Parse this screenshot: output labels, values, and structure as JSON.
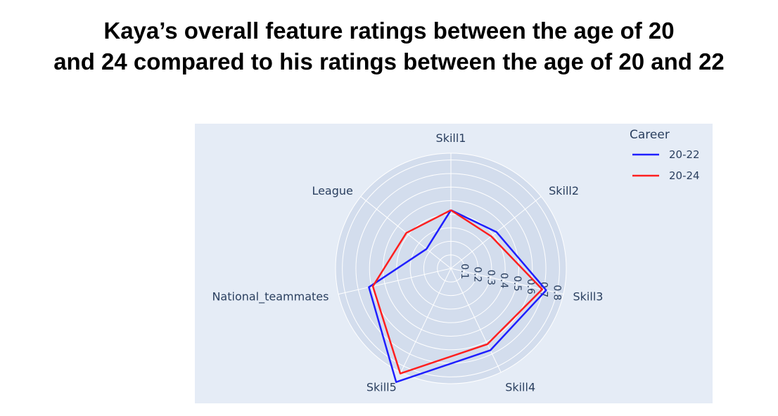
{
  "title": {
    "line1": "Kaya’s overall feature ratings between the age of 20",
    "line2": "and 24 compared to his ratings between the age of 20 and 22"
  },
  "chart_data": {
    "type": "radar",
    "categories": [
      "Skill1",
      "Skill2",
      "Skill3",
      "Skill4",
      "Skill5",
      "National_teammates",
      "League"
    ],
    "radial_ticks": [
      "0.1",
      "0.2",
      "0.3",
      "0.4",
      "0.5",
      "0.6",
      "0.7",
      "0.8"
    ],
    "rlim": [
      0,
      0.85
    ],
    "grid": true,
    "legend": {
      "title": "Career",
      "placement": "top-right"
    },
    "series": [
      {
        "name": "20-22",
        "color": "#1f1fff",
        "values": [
          0.43,
          0.43,
          0.72,
          0.67,
          0.93,
          0.62,
          0.23
        ]
      },
      {
        "name": "20-24",
        "color": "#ff1f1f",
        "values": [
          0.43,
          0.38,
          0.69,
          0.62,
          0.86,
          0.59,
          0.42
        ]
      }
    ]
  }
}
